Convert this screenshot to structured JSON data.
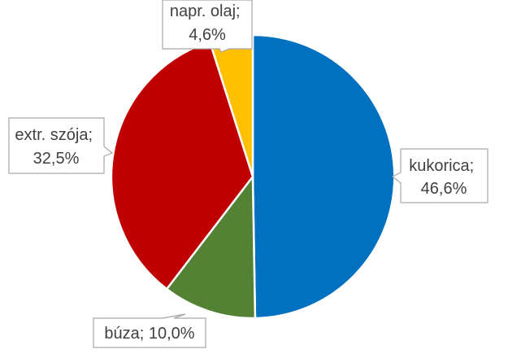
{
  "chart_data": {
    "type": "pie",
    "slices": [
      {
        "name": "kukorica",
        "value": 46.6,
        "label_line1": "kukorica;",
        "label_line2": "46,6%",
        "color": "#0070C0"
      },
      {
        "name": "búza",
        "value": 10.0,
        "label_line1": "búza; 10,0%",
        "label_line2": "",
        "color": "#548235"
      },
      {
        "name": "extr. szója",
        "value": 32.5,
        "label_line1": "extr. szója;",
        "label_line2": "32,5%",
        "color": "#C00000"
      },
      {
        "name": "napr. olaj",
        "value": 4.6,
        "label_line1": "napr. olaj;",
        "label_line2": "4,6%",
        "color": "#FFC000"
      }
    ]
  }
}
